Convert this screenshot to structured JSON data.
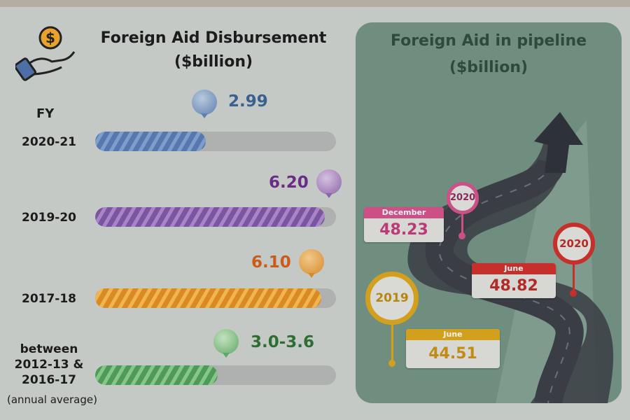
{
  "left": {
    "title_line1": "Foreign Aid Disbursement",
    "title_line2": "($billion)",
    "fy_label": "FY",
    "note": "(annual average)"
  },
  "right": {
    "title_line1": "Foreign Aid in pipeline",
    "title_line2": "($billion)"
  },
  "icons": {
    "left_logo": "hand-holding-dollar-icon",
    "right_graphic": "winding-road-arrow-icon"
  },
  "colors": {
    "blue": "#4f6fa6",
    "purple": "#7c559c",
    "orange": "#d98b24",
    "green": "#58a35e",
    "pink": "#cc4f86",
    "red": "#c6302b",
    "yellow": "#d2a01c",
    "road": "#3a3d44",
    "panel": "#6f8e80"
  },
  "chart_data": [
    {
      "type": "bar",
      "title": "Foreign Aid Disbursement ($billion)",
      "xlabel": "FY",
      "categories": [
        "2020-21",
        "2019-20",
        "2017-18",
        "between 2012-13 & 2016-17"
      ],
      "values": [
        2.99,
        6.2,
        6.1,
        3.3
      ],
      "value_labels": [
        "2.99",
        "6.20",
        "6.10",
        "3.0-3.6"
      ],
      "xlim": [
        0,
        6.5
      ]
    },
    {
      "type": "line",
      "title": "Foreign Aid in pipeline ($billion)",
      "points": [
        {
          "year": "2019",
          "month": "June",
          "value": "44.51"
        },
        {
          "year": "2020",
          "month": "December",
          "value": "48.23"
        },
        {
          "year": "2020",
          "month": "June",
          "value": "48.82"
        }
      ]
    }
  ]
}
